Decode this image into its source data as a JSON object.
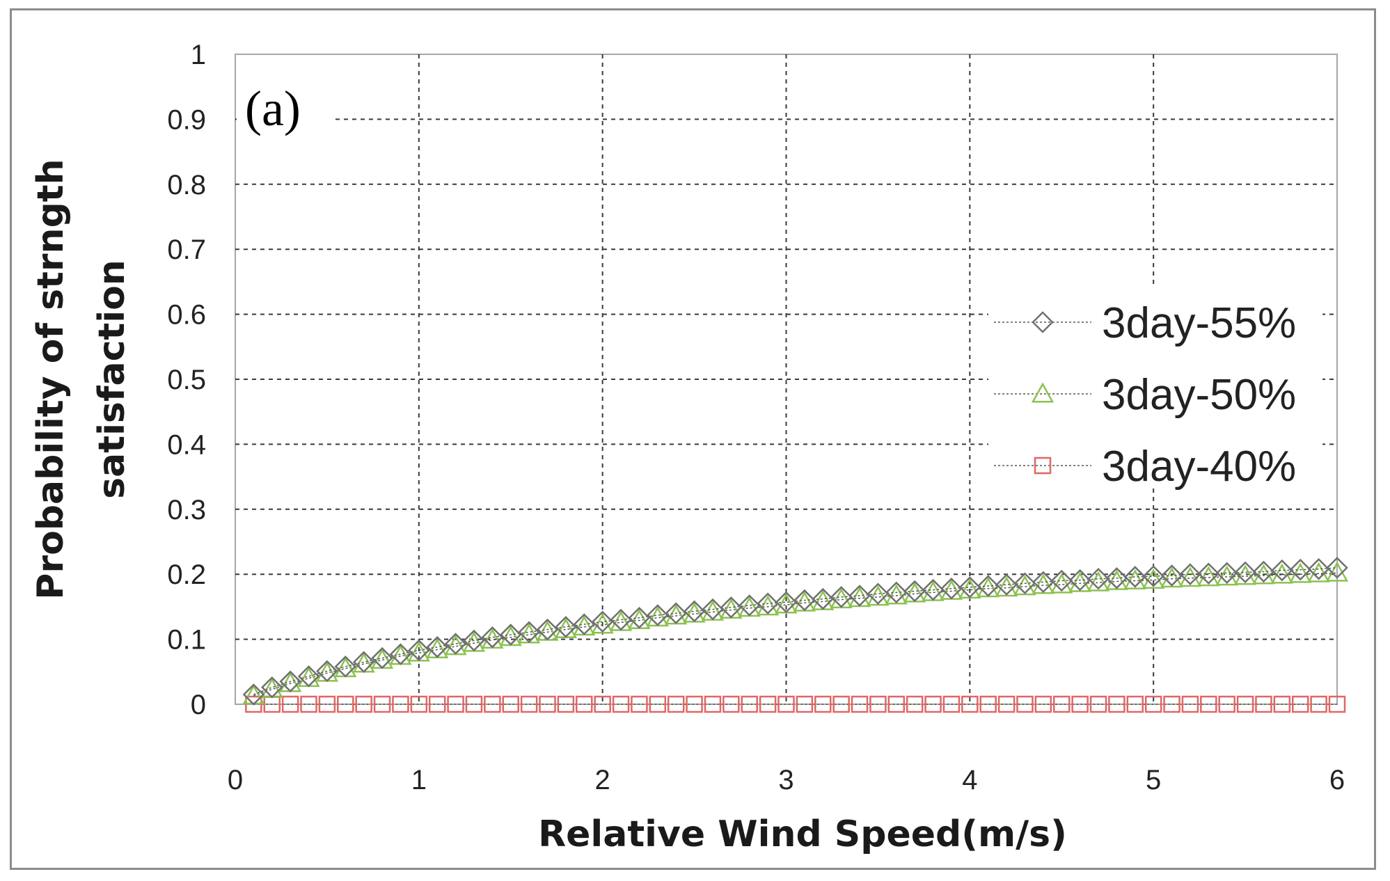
{
  "chart_data": {
    "type": "line",
    "panel_label": "(a)",
    "title": "",
    "xlabel": "Relative Wind Speed(m/s)",
    "ylabel_lines": [
      "Probability of strngth",
      "satisfaction"
    ],
    "xlim": [
      0,
      6
    ],
    "ylim": [
      0,
      1
    ],
    "xticks": [
      "0",
      "1",
      "2",
      "3",
      "4",
      "5",
      "6"
    ],
    "yticks": [
      "0",
      "0.1",
      "0.2",
      "0.3",
      "0.4",
      "0.5",
      "0.6",
      "0.7",
      "0.8",
      "0.9",
      "1"
    ],
    "grid": true,
    "legend_position": "right",
    "x": [
      0.1,
      0.2,
      0.3,
      0.4,
      0.5,
      0.6,
      0.7,
      0.8,
      0.9,
      1.0,
      1.1,
      1.2,
      1.3,
      1.4,
      1.5,
      1.6,
      1.7,
      1.8,
      1.9,
      2.0,
      2.1,
      2.2,
      2.3,
      2.4,
      2.5,
      2.6,
      2.7,
      2.8,
      2.9,
      3.0,
      3.1,
      3.2,
      3.3,
      3.4,
      3.5,
      3.6,
      3.7,
      3.8,
      3.9,
      4.0,
      4.1,
      4.2,
      4.3,
      4.4,
      4.5,
      4.6,
      4.7,
      4.8,
      4.9,
      5.0,
      5.1,
      5.2,
      5.3,
      5.4,
      5.5,
      5.6,
      5.7,
      5.8,
      5.9,
      6.0
    ],
    "series": [
      {
        "name": "3day-55%",
        "marker": "diamond",
        "color": "#707070",
        "values": [
          0.015,
          0.026,
          0.035,
          0.043,
          0.051,
          0.058,
          0.065,
          0.071,
          0.077,
          0.083,
          0.088,
          0.093,
          0.098,
          0.103,
          0.107,
          0.111,
          0.115,
          0.119,
          0.123,
          0.127,
          0.13,
          0.133,
          0.137,
          0.14,
          0.143,
          0.146,
          0.149,
          0.152,
          0.155,
          0.157,
          0.16,
          0.162,
          0.165,
          0.167,
          0.17,
          0.172,
          0.174,
          0.176,
          0.178,
          0.18,
          0.182,
          0.184,
          0.186,
          0.188,
          0.19,
          0.191,
          0.193,
          0.194,
          0.196,
          0.197,
          0.198,
          0.2,
          0.201,
          0.202,
          0.203,
          0.204,
          0.206,
          0.207,
          0.208,
          0.21
        ]
      },
      {
        "name": "3day-50%",
        "marker": "triangle",
        "color": "#8cc152",
        "values": [
          0.013,
          0.023,
          0.032,
          0.04,
          0.048,
          0.055,
          0.062,
          0.068,
          0.074,
          0.079,
          0.084,
          0.089,
          0.094,
          0.099,
          0.103,
          0.107,
          0.111,
          0.115,
          0.119,
          0.122,
          0.126,
          0.129,
          0.133,
          0.136,
          0.139,
          0.142,
          0.145,
          0.148,
          0.15,
          0.153,
          0.156,
          0.158,
          0.161,
          0.163,
          0.165,
          0.167,
          0.17,
          0.172,
          0.174,
          0.176,
          0.178,
          0.179,
          0.181,
          0.183,
          0.184,
          0.186,
          0.187,
          0.189,
          0.19,
          0.191,
          0.193,
          0.194,
          0.195,
          0.196,
          0.197,
          0.198,
          0.199,
          0.2,
          0.201,
          0.202
        ]
      },
      {
        "name": "3day-40%",
        "marker": "square",
        "color": "#e06666",
        "values": [
          0,
          0,
          0,
          0,
          0,
          0,
          0,
          0,
          0,
          0,
          0,
          0,
          0,
          0,
          0,
          0,
          0,
          0,
          0,
          0,
          0,
          0,
          0,
          0,
          0,
          0,
          0,
          0,
          0,
          0,
          0,
          0,
          0,
          0,
          0,
          0,
          0,
          0,
          0,
          0,
          0,
          0,
          0,
          0,
          0,
          0,
          0,
          0,
          0,
          0,
          0,
          0,
          0,
          0,
          0,
          0,
          0,
          0,
          0,
          0
        ]
      }
    ]
  }
}
